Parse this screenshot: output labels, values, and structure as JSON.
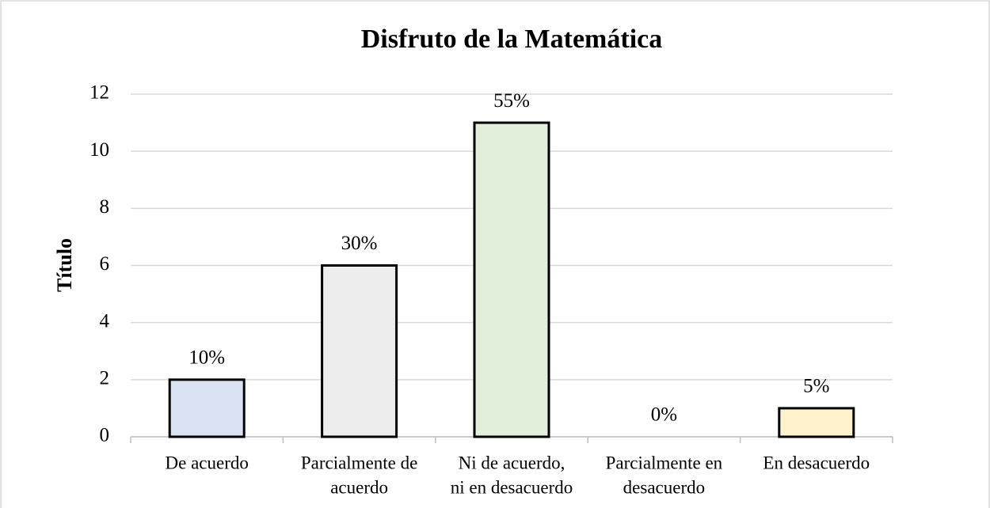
{
  "chart_data": {
    "type": "bar",
    "title": "Disfruto de la Matemática",
    "y_axis_label": "Título",
    "categories": [
      [
        "De acuerdo"
      ],
      [
        "Parcialmente de",
        "acuerdo"
      ],
      [
        "Ni de acuerdo,",
        "ni en desacuerdo"
      ],
      [
        "Parcialmente en",
        "desacuerdo"
      ],
      [
        "En desacuerdo"
      ]
    ],
    "values": [
      2,
      6,
      11,
      0,
      1
    ],
    "value_labels": [
      "10%",
      "30%",
      "55%",
      "0%",
      "5%"
    ],
    "colors": [
      "#dae3f3",
      "#ededed",
      "#e2efda",
      "#fbe5d6",
      "#fff2cc"
    ],
    "ylim": [
      0,
      12
    ],
    "yticks": [
      0,
      2,
      4,
      6,
      8,
      10,
      12
    ],
    "grid": true
  }
}
